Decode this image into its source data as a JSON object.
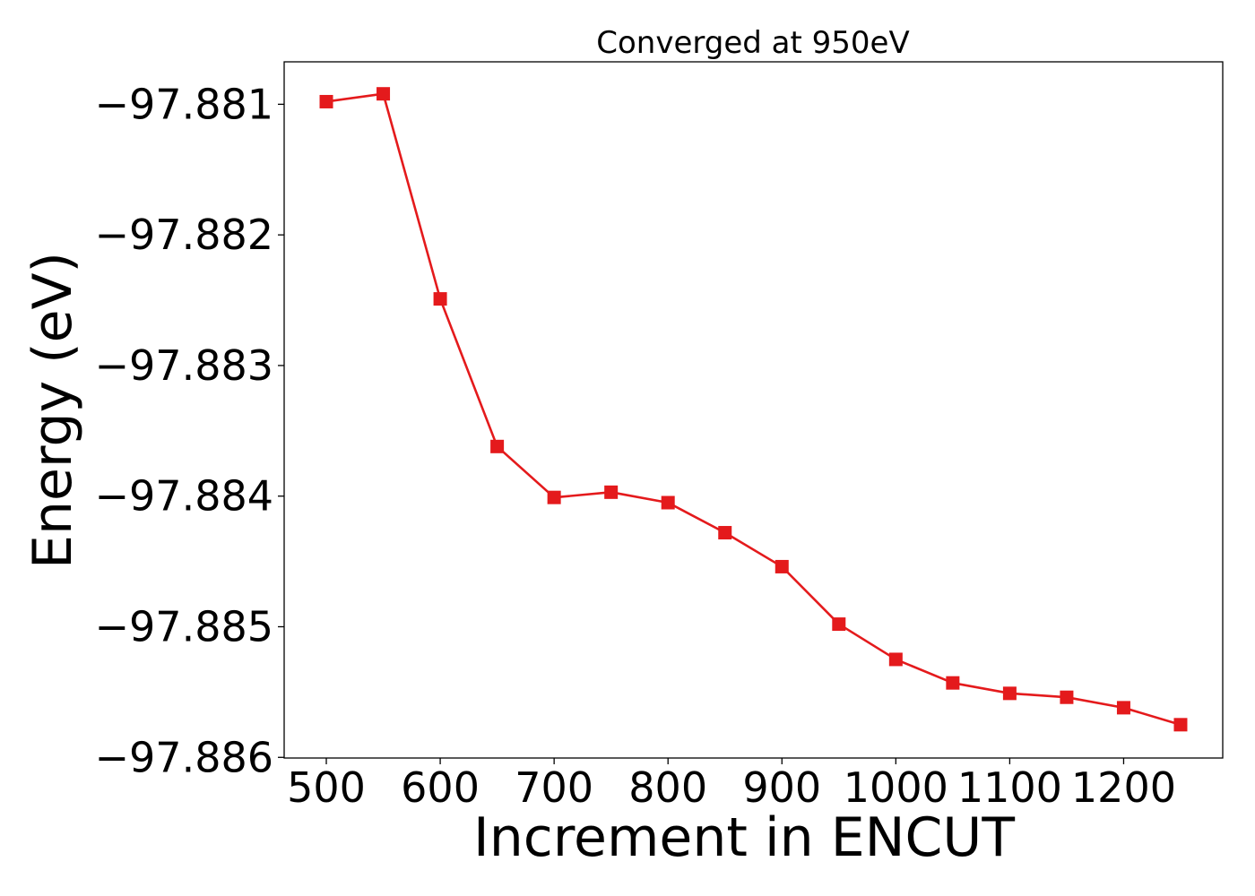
{
  "chart_data": {
    "type": "line",
    "title": "Converged at 950eV",
    "xlabel": "Increment in ENCUT",
    "ylabel": "Energy (eV)",
    "x": [
      500,
      550,
      600,
      650,
      700,
      750,
      800,
      850,
      900,
      950,
      1000,
      1050,
      1100,
      1150,
      1200,
      1250
    ],
    "series": [
      {
        "name": "",
        "color": "#e41a1c",
        "marker": "square",
        "values": [
          -97.88098,
          -97.88092,
          -97.88249,
          -97.88362,
          -97.88401,
          -97.88397,
          -97.88405,
          -97.88428,
          -97.88454,
          -97.88498,
          -97.88525,
          -97.88543,
          -97.88551,
          -97.88554,
          -97.88562,
          -97.88575
        ]
      }
    ],
    "xlim": [
      463,
      1287
    ],
    "ylim": [
      -97.886005,
      -97.880675
    ],
    "xticks": [
      500,
      600,
      700,
      800,
      900,
      1000,
      1100,
      1200
    ],
    "xtick_labels": [
      "500",
      "600",
      "700",
      "800",
      "900",
      "1000",
      "1100",
      "1200"
    ],
    "yticks": [
      -97.881,
      -97.882,
      -97.883,
      -97.884,
      -97.885,
      -97.886
    ],
    "ytick_labels": [
      "−97.881",
      "−97.882",
      "−97.883",
      "−97.884",
      "−97.885",
      "−97.886"
    ],
    "grid": false,
    "legend": "none"
  }
}
